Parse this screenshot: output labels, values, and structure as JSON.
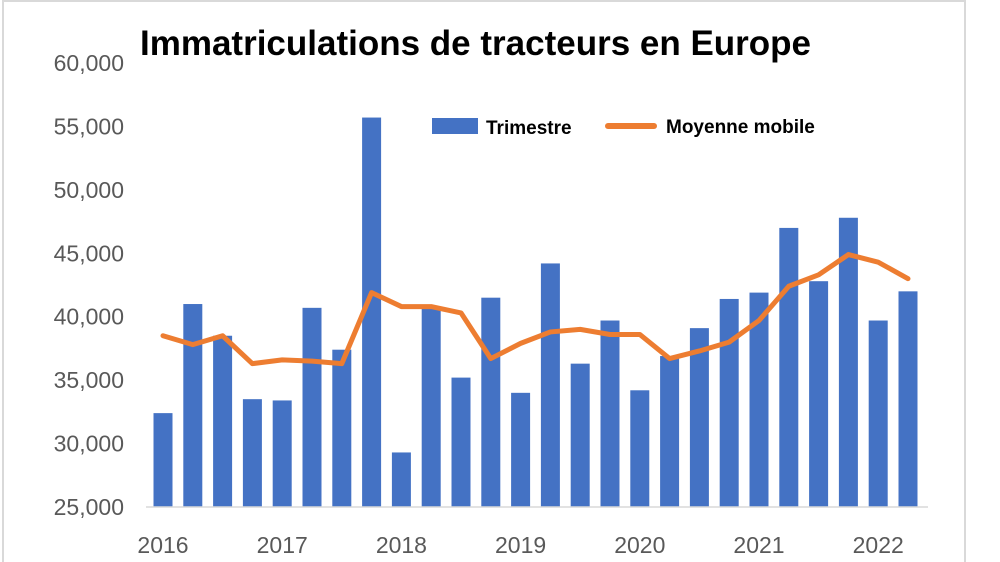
{
  "chart_data": {
    "type": "bar",
    "title": "Immatriculations de tracteurs en Europe",
    "xlabel": "",
    "ylabel": "",
    "ylim": [
      25000,
      60000
    ],
    "yticks": [
      "25,000",
      "30,000",
      "35,000",
      "40,000",
      "45,000",
      "50,000",
      "55,000",
      "60,000"
    ],
    "year_labels": [
      "2016",
      "2017",
      "2018",
      "2019",
      "2020",
      "2021",
      "2022"
    ],
    "legend_position": "top-right",
    "grid": false,
    "series": [
      {
        "name": "Trimestre",
        "type": "bar",
        "color": "#4472C4",
        "values": [
          32400,
          41000,
          38500,
          33500,
          33400,
          40700,
          37400,
          55700,
          29300,
          40800,
          35200,
          41500,
          34000,
          44200,
          36300,
          39700,
          34200,
          36900,
          39100,
          41400,
          41900,
          47000,
          42800,
          47800,
          39700,
          42000
        ]
      },
      {
        "name": "Moyenne mobile",
        "type": "line",
        "color": "#ED7D31",
        "values": [
          38500,
          37800,
          38500,
          36300,
          36600,
          36500,
          36300,
          41900,
          40800,
          40800,
          40300,
          36700,
          37900,
          38800,
          39000,
          38600,
          38600,
          36700,
          37300,
          38000,
          39700,
          42400,
          43300,
          44900,
          44300,
          43000
        ]
      }
    ]
  }
}
